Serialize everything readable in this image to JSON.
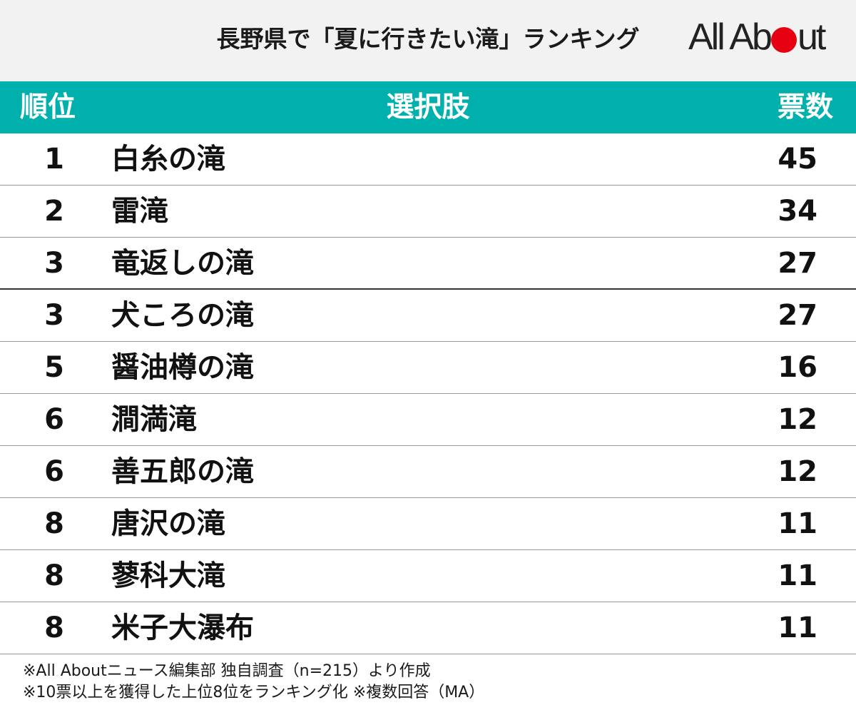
{
  "title": "長野県で「夏に行きたい滝」ランキング",
  "logo": {
    "text_left": "All Ab",
    "text_right": "ut",
    "dot_color": "#e60012"
  },
  "colors": {
    "header_bg": "#00b0ad",
    "top_band_bg": "#f2f2f2"
  },
  "headers": {
    "rank": "順位",
    "choice": "選択肢",
    "votes": "票数"
  },
  "chart_data": {
    "type": "table",
    "title": "長野県で「夏に行きたい滝」ランキング",
    "columns": [
      "順位",
      "選択肢",
      "票数"
    ],
    "rows": [
      {
        "rank": "1",
        "name": "白糸の滝",
        "votes": 45
      },
      {
        "rank": "2",
        "name": "雷滝",
        "votes": 34
      },
      {
        "rank": "3",
        "name": "竜返しの滝",
        "votes": 27
      },
      {
        "rank": "3",
        "name": "犬ころの滝",
        "votes": 27
      },
      {
        "rank": "5",
        "name": "醤油樽の滝",
        "votes": 16
      },
      {
        "rank": "6",
        "name": "澗満滝",
        "votes": 12
      },
      {
        "rank": "6",
        "name": "善五郎の滝",
        "votes": 12
      },
      {
        "rank": "8",
        "name": "唐沢の滝",
        "votes": 11
      },
      {
        "rank": "8",
        "name": "蓼科大滝",
        "votes": 11
      },
      {
        "rank": "8",
        "name": "米子大瀑布",
        "votes": 11
      }
    ]
  },
  "footnotes": [
    "※All Aboutニュース編集部 独自調査（n=215）より作成",
    "※10票以上を獲得した上位8位をランキング化 ※複数回答（MA）"
  ]
}
